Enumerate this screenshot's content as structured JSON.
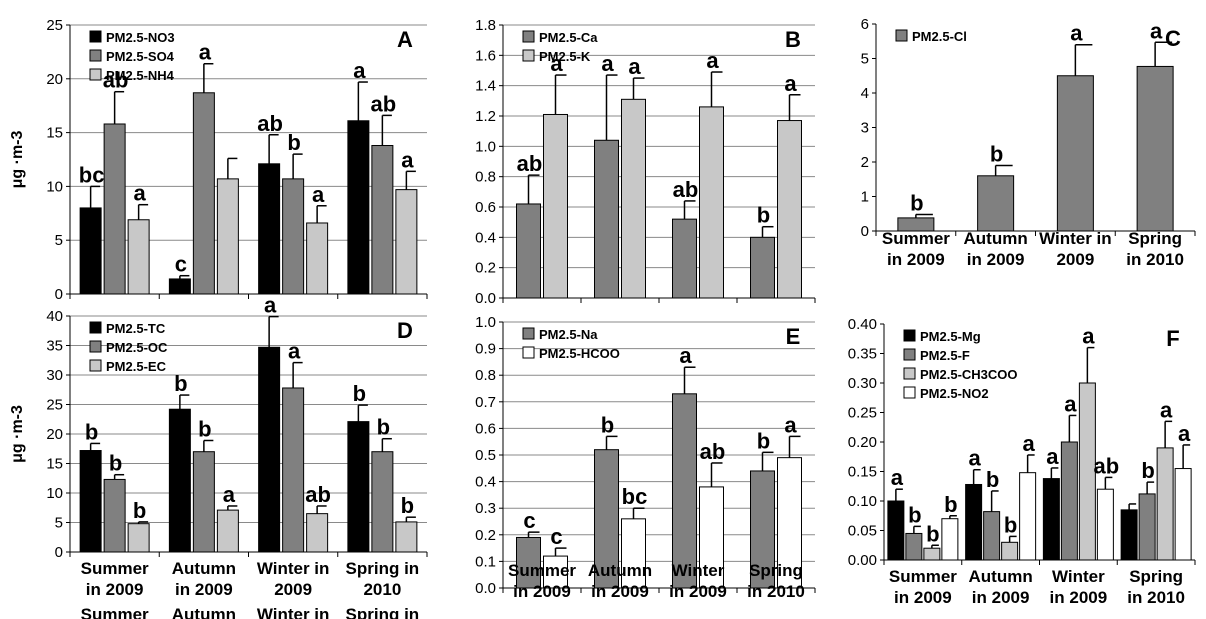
{
  "colors": {
    "black": "#000000",
    "dark_gray": "#808080",
    "light_gray": "#c8c8c8",
    "white": "#ffffff"
  },
  "chart_data": [
    {
      "id": "A",
      "type": "bar",
      "panel_label": "A",
      "ylabel": "μg ·m-3",
      "ylim": [
        0,
        25
      ],
      "yticks": [
        0,
        5,
        10,
        15,
        20,
        25
      ],
      "grid": true,
      "legend": "top-left",
      "categories": [
        "Summer\nin 2009",
        "Autumn\nin 2009",
        "Winter in\n2009",
        "Spring in\n2010"
      ],
      "series": [
        {
          "name": "PM2.5-NO3",
          "color": "black",
          "values": [
            8.0,
            1.4,
            12.1,
            16.1
          ],
          "errors": [
            2.0,
            0.3,
            2.7,
            3.6
          ],
          "letters": [
            "bc",
            "c",
            "ab",
            "a"
          ]
        },
        {
          "name": "PM2.5-SO4",
          "color": "dark_gray",
          "values": [
            15.8,
            18.7,
            10.7,
            13.8
          ],
          "errors": [
            3.0,
            2.7,
            2.3,
            2.8
          ],
          "letters": [
            "ab",
            "a",
            "b",
            "ab"
          ]
        },
        {
          "name": "PM2.5-NH4",
          "color": "light_gray",
          "values": [
            6.9,
            10.7,
            6.6,
            9.7
          ],
          "errors": [
            1.4,
            1.9,
            1.6,
            1.7
          ],
          "letters": [
            "a",
            "",
            "a",
            "a"
          ]
        }
      ]
    },
    {
      "id": "B",
      "type": "bar",
      "panel_label": "B",
      "ylabel": "",
      "ylim": [
        0,
        1.8
      ],
      "yticks": [
        0.0,
        0.2,
        0.4,
        0.6,
        0.8,
        1.0,
        1.2,
        1.4,
        1.6,
        1.8
      ],
      "decimals": 1,
      "grid": true,
      "legend": "top-left",
      "categories": [
        "",
        "",
        "",
        ""
      ],
      "series": [
        {
          "name": "PM2.5-Ca",
          "color": "dark_gray",
          "values": [
            0.62,
            1.04,
            0.52,
            0.4
          ],
          "errors": [
            0.19,
            0.43,
            0.12,
            0.07
          ],
          "letters": [
            "ab",
            "a",
            "ab",
            "b"
          ]
        },
        {
          "name": "PM2.5-K",
          "color": "light_gray",
          "values": [
            1.21,
            1.31,
            1.26,
            1.17
          ],
          "errors": [
            0.26,
            0.14,
            0.23,
            0.17
          ],
          "letters": [
            "a",
            "a",
            "a",
            "a"
          ]
        }
      ]
    },
    {
      "id": "C",
      "type": "bar",
      "panel_label": "C",
      "ylabel": "",
      "ylim": [
        0,
        6
      ],
      "yticks": [
        0,
        1,
        2,
        3,
        4,
        5,
        6
      ],
      "grid": false,
      "legend": "top-left",
      "categories": [
        "Summer\nin 2009",
        "Autumn\nin 2009",
        "Winter in\n2009",
        "Spring\nin 2010"
      ],
      "series": [
        {
          "name": "PM2.5-Cl",
          "color": "dark_gray",
          "values": [
            0.38,
            1.6,
            4.5,
            4.77
          ],
          "errors": [
            0.1,
            0.3,
            0.9,
            0.7
          ],
          "letters": [
            "b",
            "b",
            "a",
            "a"
          ]
        }
      ]
    },
    {
      "id": "D",
      "type": "bar",
      "panel_label": "D",
      "ylabel": "μg ·m-3",
      "ylim": [
        0,
        40
      ],
      "yticks": [
        0,
        5,
        10,
        15,
        20,
        25,
        30,
        35,
        40
      ],
      "grid": true,
      "legend": "top-left",
      "categories": [
        "Summer\nin 2009",
        "Autumn\nin 2009",
        "Winter in\n2009",
        "Spring in\n2010"
      ],
      "series": [
        {
          "name": "PM2.5-TC",
          "color": "black",
          "values": [
            17.2,
            24.2,
            34.7,
            22.1
          ],
          "errors": [
            1.2,
            2.4,
            5.2,
            2.8
          ],
          "letters": [
            "b",
            "b",
            "a",
            "b"
          ]
        },
        {
          "name": "PM2.5-OC",
          "color": "dark_gray",
          "values": [
            12.3,
            17.0,
            27.8,
            17.0
          ],
          "errors": [
            0.8,
            1.9,
            4.3,
            2.2
          ],
          "letters": [
            "b",
            "b",
            "a",
            "b"
          ]
        },
        {
          "name": "PM2.5-EC",
          "color": "light_gray",
          "values": [
            4.8,
            7.1,
            6.5,
            5.1
          ],
          "errors": [
            0.3,
            0.7,
            1.3,
            0.8
          ],
          "letters": [
            "b",
            "a",
            "ab",
            "b"
          ]
        }
      ]
    },
    {
      "id": "E",
      "type": "bar",
      "panel_label": "E",
      "ylabel": "",
      "ylim": [
        0,
        1.0
      ],
      "yticks": [
        0.0,
        0.1,
        0.2,
        0.3,
        0.4,
        0.5,
        0.6,
        0.7,
        0.8,
        0.9,
        1.0
      ],
      "decimals": 1,
      "grid": true,
      "legend": "top-left",
      "categories": [
        "Summer\nin 2009",
        "Autumn\nin 2009",
        "Winter\nin 2009",
        "Spring\nin 2010"
      ],
      "series": [
        {
          "name": "PM2.5-Na",
          "color": "dark_gray",
          "values": [
            0.19,
            0.52,
            0.73,
            0.44
          ],
          "errors": [
            0.02,
            0.05,
            0.1,
            0.07
          ],
          "letters": [
            "c",
            "b",
            "a",
            "b"
          ]
        },
        {
          "name": "PM2.5-HCOO",
          "color": "white",
          "values": [
            0.12,
            0.26,
            0.38,
            0.49
          ],
          "errors": [
            0.03,
            0.04,
            0.09,
            0.08
          ],
          "letters": [
            "c",
            "bc",
            "ab",
            "a"
          ]
        }
      ]
    },
    {
      "id": "F",
      "type": "bar",
      "panel_label": "F",
      "ylabel": "",
      "ylim": [
        0,
        0.4
      ],
      "yticks": [
        0.0,
        0.05,
        0.1,
        0.15,
        0.2,
        0.25,
        0.3,
        0.35,
        0.4
      ],
      "decimals": 2,
      "grid": false,
      "legend": "top-left",
      "categories": [
        "Summer\nin 2009",
        "Autumn\nin 2009",
        "Winter\nin 2009",
        "Spring\nin 2010"
      ],
      "series": [
        {
          "name": "PM2.5-Mg",
          "color": "black",
          "values": [
            0.1,
            0.128,
            0.138,
            0.085
          ],
          "errors": [
            0.02,
            0.025,
            0.018,
            0.01
          ],
          "letters": [
            "a",
            "a",
            "a",
            ""
          ]
        },
        {
          "name": "PM2.5-F",
          "color": "dark_gray",
          "values": [
            0.045,
            0.082,
            0.2,
            0.112
          ],
          "errors": [
            0.012,
            0.035,
            0.045,
            0.02
          ],
          "letters": [
            "b",
            "b",
            "a",
            "b"
          ]
        },
        {
          "name": "PM2.5-CH3COO",
          "color": "light_gray",
          "values": [
            0.02,
            0.03,
            0.3,
            0.19
          ],
          "errors": [
            0.005,
            0.01,
            0.06,
            0.045
          ],
          "letters": [
            "b",
            "b",
            "a",
            "a"
          ]
        },
        {
          "name": "PM2.5-NO2",
          "color": "white",
          "values": [
            0.07,
            0.148,
            0.12,
            0.155
          ],
          "errors": [
            0.005,
            0.03,
            0.02,
            0.04
          ],
          "letters": [
            "b",
            "a",
            "ab",
            "a"
          ]
        }
      ]
    }
  ]
}
